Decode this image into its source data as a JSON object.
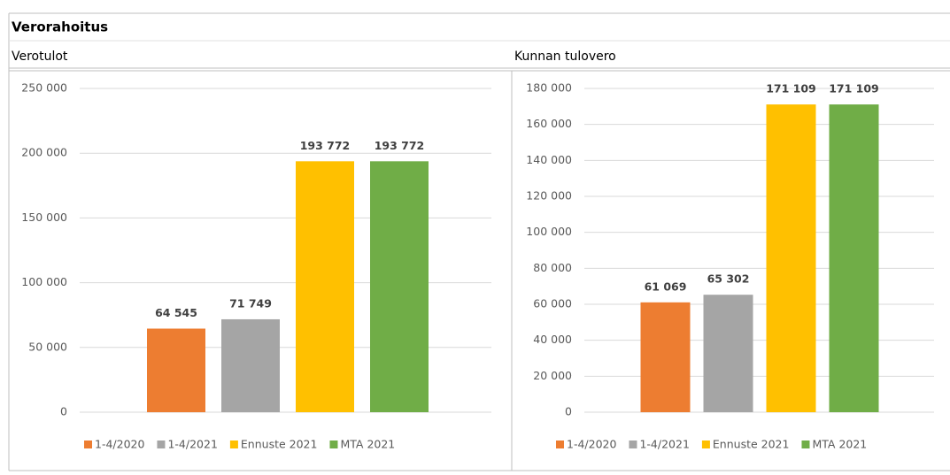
{
  "title": "Verorahoitus",
  "chart_data": [
    {
      "type": "bar",
      "title": "Verotulot",
      "ylim": [
        0,
        250000
      ],
      "yticks": [
        0,
        {
          "value": 50000,
          "label": "50 000"
        },
        {
          "value": 100000,
          "label": "100 000"
        },
        {
          "value": 150000,
          "label": "150 000"
        },
        {
          "value": 200000,
          "label": "200 000"
        },
        {
          "value": 250000,
          "label": "250 000"
        }
      ],
      "grid": true,
      "legend": "bottom",
      "series": [
        {
          "name": "1-4/2020",
          "color": "#ed7d31",
          "values": [
            64545
          ],
          "value_labels": [
            "64 545"
          ]
        },
        {
          "name": "1-4/2021",
          "color": "#a5a5a5",
          "values": [
            71749
          ],
          "value_labels": [
            "71 749"
          ]
        },
        {
          "name": "Ennuste 2021",
          "color": "#ffc000",
          "values": [
            193772
          ],
          "value_labels": [
            "193 772"
          ]
        },
        {
          "name": "MTA 2021",
          "color": "#70ad47",
          "values": [
            193772
          ],
          "value_labels": [
            "193 772"
          ]
        }
      ]
    },
    {
      "type": "bar",
      "title": "Kunnan tulovero",
      "ylim": [
        0,
        180000
      ],
      "yticks": [
        0,
        {
          "value": 20000,
          "label": "20 000"
        },
        {
          "value": 40000,
          "label": "40 000"
        },
        {
          "value": 60000,
          "label": "60 000"
        },
        {
          "value": 80000,
          "label": "80 000"
        },
        {
          "value": 100000,
          "label": "100 000"
        },
        {
          "value": 120000,
          "label": "120 000"
        },
        {
          "value": 140000,
          "label": "140 000"
        },
        {
          "value": 160000,
          "label": "160 000"
        },
        {
          "value": 180000,
          "label": "180 000"
        }
      ],
      "grid": true,
      "legend": "bottom",
      "series": [
        {
          "name": "1-4/2020",
          "color": "#ed7d31",
          "values": [
            61069
          ],
          "value_labels": [
            "61 069"
          ]
        },
        {
          "name": "1-4/2021",
          "color": "#a5a5a5",
          "values": [
            65302
          ],
          "value_labels": [
            "65 302"
          ]
        },
        {
          "name": "Ennuste 2021",
          "color": "#ffc000",
          "values": [
            171109
          ],
          "value_labels": [
            "171 109"
          ]
        },
        {
          "name": "MTA 2021",
          "color": "#70ad47",
          "values": [
            171109
          ],
          "value_labels": [
            "171 109"
          ]
        }
      ]
    }
  ]
}
